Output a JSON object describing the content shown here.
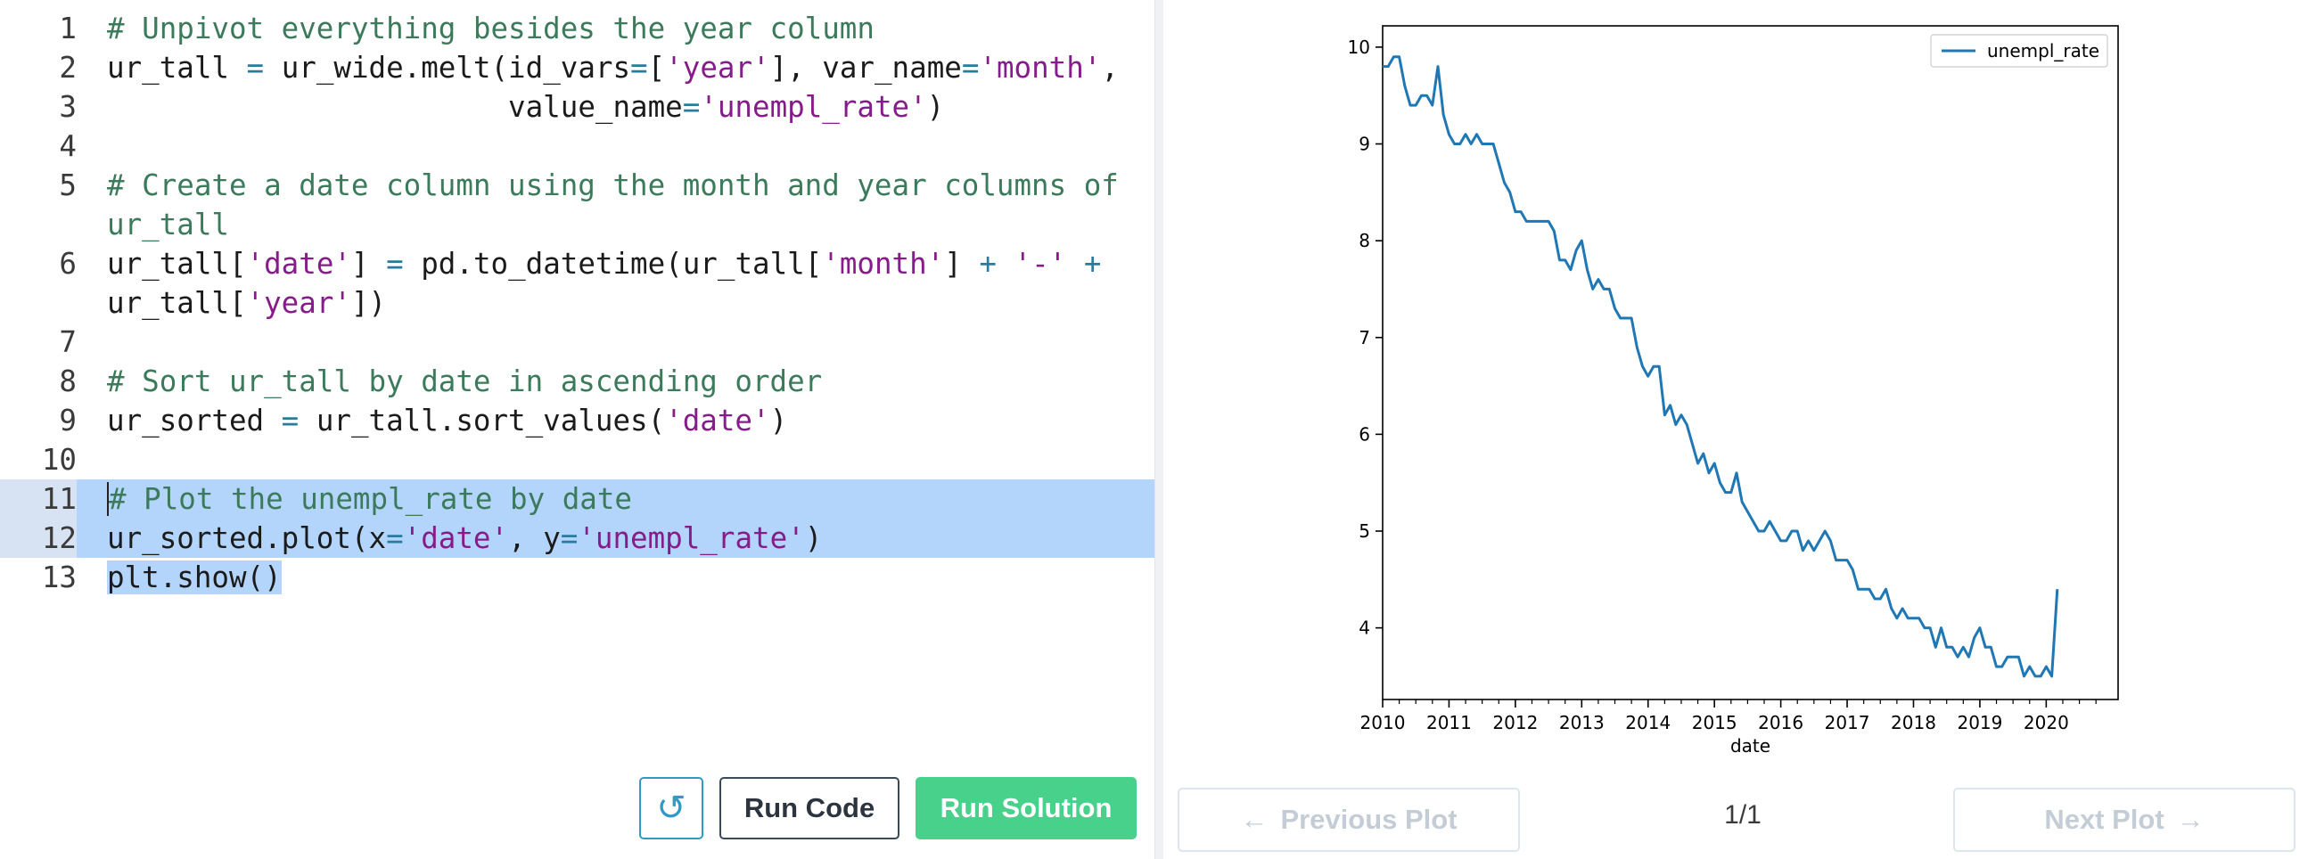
{
  "editor": {
    "lines": [
      {
        "num": "1"
      },
      {
        "num": "2"
      },
      {
        "num": "3"
      },
      {
        "num": "4"
      },
      {
        "num": "5"
      },
      {
        "num": "6"
      },
      {
        "num": "7"
      },
      {
        "num": "8"
      },
      {
        "num": "9"
      },
      {
        "num": "10"
      },
      {
        "num": "11"
      },
      {
        "num": "12"
      },
      {
        "num": "13"
      }
    ],
    "code": {
      "l1_comment": "# Unpivot everything besides the year column",
      "l2_a": "ur_tall ",
      "l2_eq": "=",
      "l2_b": " ur_wide.melt(id_vars",
      "l2_eq2": "=",
      "l2_c": "[",
      "l2_s1": "'year'",
      "l2_d": "], var_name",
      "l2_eq3": "=",
      "l2_s2": "'month'",
      "l2_e": ",",
      "l3_a": "                       value_name",
      "l3_eq": "=",
      "l3_s": "'unempl_rate'",
      "l3_b": ")",
      "l5_comment": "# Create a date column using the month and year columns of ur_tall",
      "l6_a": "ur_tall[",
      "l6_s1": "'date'",
      "l6_b": "] ",
      "l6_eq": "=",
      "l6_c": " pd.to_datetime(ur_tall[",
      "l6_s2": "'month'",
      "l6_d": "] ",
      "l6_plus": "+",
      "l6_sp": " ",
      "l6_s3": "'-'",
      "l6_sp2": " ",
      "l6_plus2": "+",
      "l6_e": " ur_tall[",
      "l6_s4": "'year'",
      "l6_f": "])",
      "l8_comment": "# Sort ur_tall by date in ascending order",
      "l9_a": "ur_sorted ",
      "l9_eq": "=",
      "l9_b": " ur_tall.sort_values(",
      "l9_s": "'date'",
      "l9_c": ")",
      "l11_comment": "# Plot the unempl_rate by date",
      "l12_a": "ur_sorted.plot(x",
      "l12_eq": "=",
      "l12_s1": "'date'",
      "l12_b": ", y",
      "l12_eq2": "=",
      "l12_s2": "'unempl_rate'",
      "l12_c": ")",
      "l13_a": "plt.show()"
    },
    "buttons": {
      "reset_icon": "↺",
      "run_code": "Run Code",
      "run_solution": "Run Solution"
    }
  },
  "plot_panel": {
    "prev_label": "Previous Plot",
    "next_label": "Next Plot",
    "page": "1/1",
    "prev_icon": "←",
    "next_icon": "→"
  },
  "chart_data": {
    "type": "line",
    "xlabel": "date",
    "ylabel": "",
    "title": "",
    "legend": "top-right",
    "grid": false,
    "color": "#1f77b4",
    "xlim": [
      "2010-01",
      "2021-02"
    ],
    "ylim": [
      3.26,
      10.22
    ],
    "x_ticks": [
      "2010",
      "2011",
      "2012",
      "2013",
      "2014",
      "2015",
      "2016",
      "2017",
      "2018",
      "2019",
      "2020"
    ],
    "y_ticks": [
      4,
      5,
      6,
      7,
      8,
      9,
      10
    ],
    "series": [
      {
        "name": "unempl_rate",
        "x": [
          "2010-01",
          "2010-02",
          "2010-03",
          "2010-04",
          "2010-05",
          "2010-06",
          "2010-07",
          "2010-08",
          "2010-09",
          "2010-10",
          "2010-11",
          "2010-12",
          "2011-01",
          "2011-02",
          "2011-03",
          "2011-04",
          "2011-05",
          "2011-06",
          "2011-07",
          "2011-08",
          "2011-09",
          "2011-10",
          "2011-11",
          "2011-12",
          "2012-01",
          "2012-02",
          "2012-03",
          "2012-04",
          "2012-05",
          "2012-06",
          "2012-07",
          "2012-08",
          "2012-09",
          "2012-10",
          "2012-11",
          "2012-12",
          "2013-01",
          "2013-02",
          "2013-03",
          "2013-04",
          "2013-05",
          "2013-06",
          "2013-07",
          "2013-08",
          "2013-09",
          "2013-10",
          "2013-11",
          "2013-12",
          "2014-01",
          "2014-02",
          "2014-03",
          "2014-04",
          "2014-05",
          "2014-06",
          "2014-07",
          "2014-08",
          "2014-09",
          "2014-10",
          "2014-11",
          "2014-12",
          "2015-01",
          "2015-02",
          "2015-03",
          "2015-04",
          "2015-05",
          "2015-06",
          "2015-07",
          "2015-08",
          "2015-09",
          "2015-10",
          "2015-11",
          "2015-12",
          "2016-01",
          "2016-02",
          "2016-03",
          "2016-04",
          "2016-05",
          "2016-06",
          "2016-07",
          "2016-08",
          "2016-09",
          "2016-10",
          "2016-11",
          "2016-12",
          "2017-01",
          "2017-02",
          "2017-03",
          "2017-04",
          "2017-05",
          "2017-06",
          "2017-07",
          "2017-08",
          "2017-09",
          "2017-10",
          "2017-11",
          "2017-12",
          "2018-01",
          "2018-02",
          "2018-03",
          "2018-04",
          "2018-05",
          "2018-06",
          "2018-07",
          "2018-08",
          "2018-09",
          "2018-10",
          "2018-11",
          "2018-12",
          "2019-01",
          "2019-02",
          "2019-03",
          "2019-04",
          "2019-05",
          "2019-06",
          "2019-07",
          "2019-08",
          "2019-09",
          "2019-10",
          "2019-11",
          "2019-12",
          "2020-01",
          "2020-02",
          "2020-03"
        ],
        "values": [
          9.8,
          9.8,
          9.9,
          9.9,
          9.6,
          9.4,
          9.4,
          9.5,
          9.5,
          9.4,
          9.8,
          9.3,
          9.1,
          9.0,
          9.0,
          9.1,
          9.0,
          9.1,
          9.0,
          9.0,
          9.0,
          8.8,
          8.6,
          8.5,
          8.3,
          8.3,
          8.2,
          8.2,
          8.2,
          8.2,
          8.2,
          8.1,
          7.8,
          7.8,
          7.7,
          7.9,
          8.0,
          7.7,
          7.5,
          7.6,
          7.5,
          7.5,
          7.3,
          7.2,
          7.2,
          7.2,
          6.9,
          6.7,
          6.6,
          6.7,
          6.7,
          6.2,
          6.3,
          6.1,
          6.2,
          6.1,
          5.9,
          5.7,
          5.8,
          5.6,
          5.7,
          5.5,
          5.4,
          5.4,
          5.6,
          5.3,
          5.2,
          5.1,
          5.0,
          5.0,
          5.1,
          5.0,
          4.9,
          4.9,
          5.0,
          5.0,
          4.8,
          4.9,
          4.8,
          4.9,
          5.0,
          4.9,
          4.7,
          4.7,
          4.7,
          4.6,
          4.4,
          4.4,
          4.4,
          4.3,
          4.3,
          4.4,
          4.2,
          4.1,
          4.2,
          4.1,
          4.1,
          4.1,
          4.0,
          4.0,
          3.8,
          4.0,
          3.8,
          3.8,
          3.7,
          3.8,
          3.7,
          3.9,
          4.0,
          3.8,
          3.8,
          3.6,
          3.6,
          3.7,
          3.7,
          3.7,
          3.5,
          3.6,
          3.5,
          3.5,
          3.6,
          3.5,
          4.4
        ]
      }
    ]
  }
}
